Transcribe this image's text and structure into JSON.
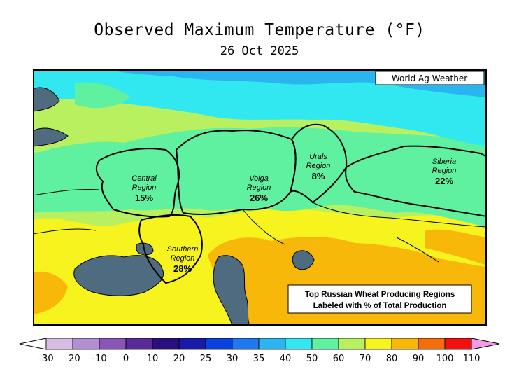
{
  "title": "Observed Maximum Temperature (°F)",
  "date": "26 Oct 2025",
  "credit": "World Ag Weather",
  "note": [
    "Top Russian Wheat Producing Regions",
    "Labeled with % of Total Production"
  ],
  "regions": [
    {
      "name": [
        "Central",
        "Region"
      ],
      "percent": "15%"
    },
    {
      "name": [
        "Volga",
        "Region"
      ],
      "percent": "26%"
    },
    {
      "name": [
        "Urals",
        "Region"
      ],
      "percent": "8%"
    },
    {
      "name": [
        "Siberia",
        "Region"
      ],
      "percent": "22%"
    },
    {
      "name": [
        "Southern",
        "Region"
      ],
      "percent": "28%"
    }
  ],
  "legend": {
    "bins": [
      {
        "label": "-30",
        "color": "#d7bde3"
      },
      {
        "label": "-20",
        "color": "#b18fd0"
      },
      {
        "label": "-10",
        "color": "#8a55b8"
      },
      {
        "label": "0",
        "color": "#5a2a9a"
      },
      {
        "label": "10",
        "color": "#2a107e"
      },
      {
        "label": "20",
        "color": "#1a1aa8"
      },
      {
        "label": "25",
        "color": "#0a3fe0"
      },
      {
        "label": "30",
        "color": "#1e78f0"
      },
      {
        "label": "35",
        "color": "#2ab4f0"
      },
      {
        "label": "40",
        "color": "#32e8f0"
      },
      {
        "label": "50",
        "color": "#5ff0a0"
      },
      {
        "label": "60",
        "color": "#b8f060"
      },
      {
        "label": "70",
        "color": "#f7f31e"
      },
      {
        "label": "80",
        "color": "#f8b80a"
      },
      {
        "label": "90",
        "color": "#f56c0a"
      },
      {
        "label": "100",
        "color": "#f51010"
      },
      {
        "label": "110",
        "color": "#f01ec8"
      }
    ],
    "end_color": "#f39be6"
  },
  "colors": {
    "water": "#4f6b80",
    "border": "#000000"
  }
}
